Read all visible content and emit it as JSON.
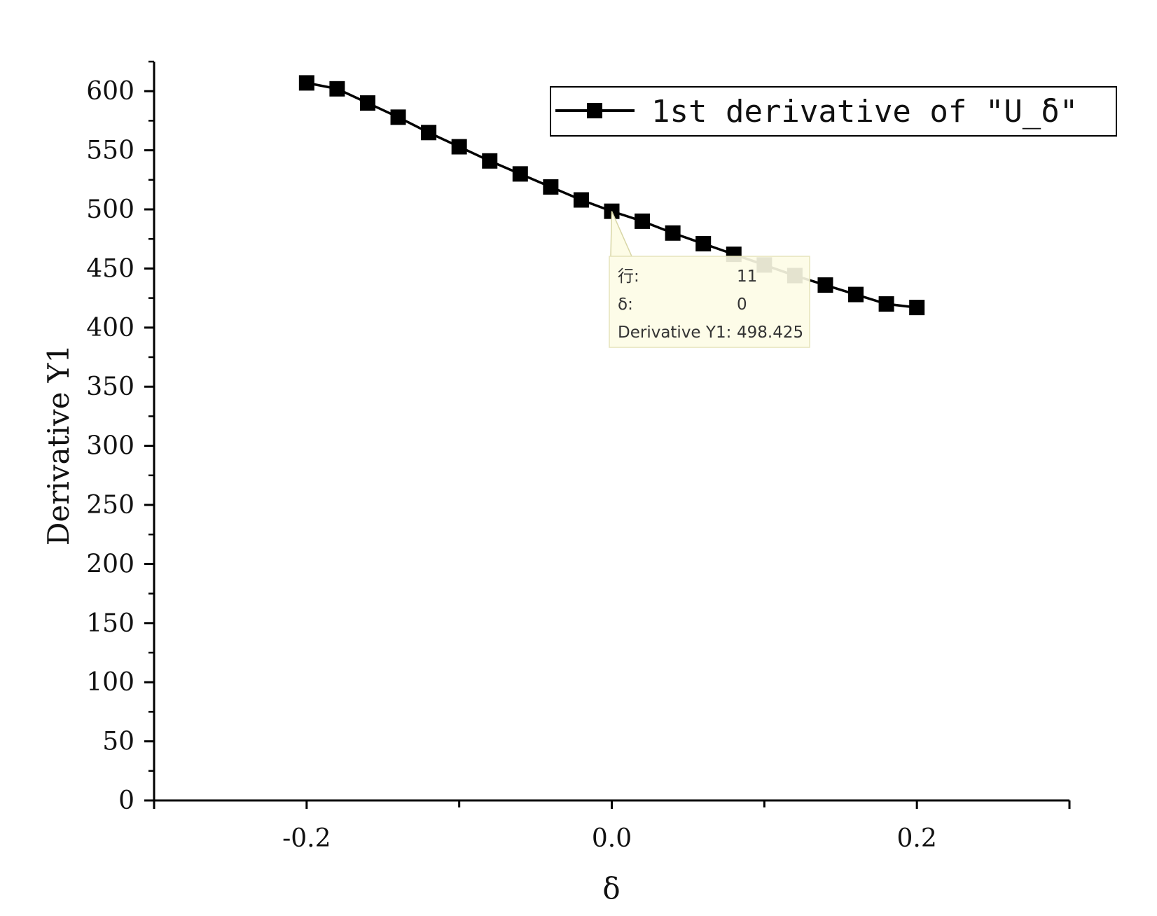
{
  "chart_data": {
    "type": "line",
    "title": "",
    "xlabel": "δ",
    "ylabel": "Derivative Y1",
    "xlim": [
      -0.3,
      0.3
    ],
    "ylim": [
      0,
      625
    ],
    "x_ticks": [
      -0.2,
      0.0,
      0.2
    ],
    "x_tick_labels": [
      "-0.2",
      "0.0",
      "0.2"
    ],
    "y_ticks": [
      0,
      50,
      100,
      150,
      200,
      250,
      300,
      350,
      400,
      450,
      500,
      550,
      600
    ],
    "y_tick_labels": [
      "0",
      "50",
      "100",
      "150",
      "200",
      "250",
      "300",
      "350",
      "400",
      "450",
      "500",
      "550",
      "600"
    ],
    "grid": false,
    "legend_position": "top-right",
    "series": [
      {
        "name": "1st derivative of \"U_δ\"",
        "color": "#000000",
        "marker": "square",
        "x": [
          -0.2,
          -0.18,
          -0.16,
          -0.14,
          -0.12,
          -0.1,
          -0.08,
          -0.06,
          -0.04,
          -0.02,
          0.0,
          0.02,
          0.04,
          0.06,
          0.08,
          0.1,
          0.12,
          0.14,
          0.16,
          0.18,
          0.2
        ],
        "y": [
          607,
          602,
          590,
          578,
          565,
          553,
          541,
          530,
          519,
          508,
          498.425,
          490,
          480,
          471,
          462,
          453,
          444,
          436,
          428,
          420,
          417
        ]
      }
    ],
    "tooltip": {
      "row_label": "行:",
      "row_value": "11",
      "x_label": "δ:",
      "x_value": "0",
      "y_label": "Derivative Y1:",
      "y_value": "498.425",
      "anchor_index": 10
    }
  }
}
